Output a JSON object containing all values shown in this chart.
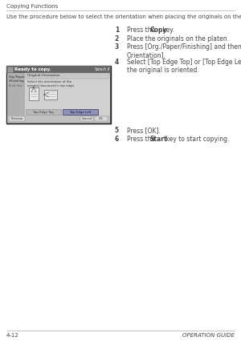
{
  "page_header": "Copying Functions",
  "intro_text": "Use the procedure below to select the orientation when placing the originals on the platen.",
  "steps": [
    {
      "num": "1",
      "text": "Press the ",
      "bold": "Copy",
      "rest": " key."
    },
    {
      "num": "2",
      "text": "Place the originals on the platen.",
      "bold": "",
      "rest": ""
    },
    {
      "num": "3",
      "text": "Press [Org./Paper/Finishing] and then [Original\nOrientation].",
      "bold": "",
      "rest": ""
    },
    {
      "num": "4",
      "text": "Select [Top Edge Top] or [Top Edge Left] as the way\nthe original is oriented.",
      "bold": "",
      "rest": ""
    },
    {
      "num": "5",
      "text": "Press [OK].",
      "bold": "",
      "rest": ""
    },
    {
      "num": "6",
      "text": "Press the ",
      "bold": "Start",
      "rest": " key to start copying."
    }
  ],
  "footer_left": "4-12",
  "footer_right": "OPERATION GUIDE",
  "screen_title": "Ready to copy.",
  "screen_tab": "Select",
  "screen_sub": "Original Orientation",
  "screen_instruction": "Select the orientation of the\noriginal document's top edge.",
  "screen_btn1": "Top Edge Top",
  "screen_btn2": "Top Edge Left",
  "screen_preview_label": "Preview",
  "bg_color": "#ffffff",
  "header_line_color": "#aaaaaa",
  "footer_line_color": "#aaaaaa",
  "text_color": "#444444",
  "screen_bg": "#555555",
  "screen_inner_bg": "#d8d8d8",
  "screen_title_bar": "#666666"
}
